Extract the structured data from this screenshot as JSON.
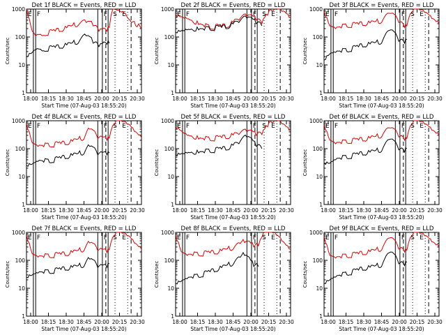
{
  "figure": {
    "ylabel": "Counts/sec",
    "xlabel": "Start Time (07-Aug-03 18:55:20)"
  },
  "chart_data": [
    {
      "type": "line",
      "title": "Det 1f BLACK = Events, RED = LLD",
      "xlabel": "Start Time (07-Aug-03 18:55:20)",
      "ylabel": "Counts/sec",
      "xticks": [
        "18:00",
        "18:15",
        "18:30",
        "18:45",
        "20:00",
        "20:15",
        "20:30"
      ],
      "yticks": [
        "1",
        "10",
        "100",
        "1000"
      ],
      "ylim": [
        1,
        1000
      ],
      "yscale": "log",
      "markers": [
        "F",
        "S",
        "E"
      ],
      "series": [
        {
          "name": "LLD",
          "color": "#e00000",
          "x": [
            0,
            0.05,
            0.08,
            0.15,
            0.3,
            0.45,
            0.52,
            0.58,
            0.63,
            0.7,
            0.72,
            0.75,
            0.78,
            0.8,
            0.85,
            0.9,
            0.95,
            1.0
          ],
          "values": [
            1000,
            160,
            110,
            115,
            160,
            260,
            330,
            250,
            160,
            160,
            220,
            1000,
            950,
            900,
            700,
            400,
            250,
            200
          ]
        },
        {
          "name": "Events",
          "color": "#000000",
          "x": [
            0,
            0.05,
            0.08,
            0.15,
            0.3,
            0.45,
            0.52,
            0.58,
            0.63,
            0.7,
            0.72
          ],
          "values": [
            20,
            28,
            35,
            32,
            40,
            60,
            110,
            60,
            45,
            55,
            60
          ]
        }
      ]
    },
    {
      "type": "line",
      "title": "Det 2f BLACK = Events, RED = LLD",
      "xlabel": "Start Time (07-Aug-03 18:55:20)",
      "ylabel": "Counts/sec",
      "xticks": [
        "18:00",
        "18:15",
        "18:30",
        "18:45",
        "20:00",
        "20:15",
        "20:30"
      ],
      "yticks": [
        "1",
        "10",
        "100",
        "1000"
      ],
      "ylim": [
        1,
        1000
      ],
      "yscale": "log",
      "markers": [
        "F",
        "S",
        "E"
      ],
      "series": [
        {
          "name": "LLD",
          "color": "#e00000",
          "x": [
            0,
            0.1,
            0.2,
            0.3,
            0.45,
            0.55,
            0.62,
            0.7,
            0.75,
            0.8,
            0.85,
            0.9,
            0.95,
            1.0
          ],
          "values": [
            600,
            450,
            280,
            200,
            220,
            400,
            550,
            400,
            300,
            600,
            900,
            1000,
            800,
            500
          ]
        },
        {
          "name": "Events",
          "color": "#000000",
          "x": [
            0,
            0.1,
            0.2,
            0.3,
            0.45,
            0.55,
            0.62,
            0.7,
            0.75
          ],
          "values": [
            150,
            180,
            180,
            180,
            200,
            330,
            470,
            300,
            250
          ]
        }
      ]
    },
    {
      "type": "line",
      "title": "Det 3f BLACK = Events, RED = LLD",
      "xlabel": "Start Time (07-Aug-03 18:55:20)",
      "ylabel": "Counts/sec",
      "xticks": [
        "18:00",
        "18:15",
        "18:30",
        "18:45",
        "20:00",
        "20:15",
        "20:30"
      ],
      "yticks": [
        "1",
        "10",
        "100",
        "1000"
      ],
      "ylim": [
        1,
        1000
      ],
      "yscale": "log",
      "markers": [
        "F",
        "S",
        "E"
      ],
      "series": [
        {
          "name": "LLD",
          "color": "#e00000",
          "x": [
            0,
            0.05,
            0.1,
            0.2,
            0.35,
            0.5,
            0.58,
            0.65,
            0.7,
            0.72,
            0.78,
            0.85,
            0.9,
            0.95,
            1.0
          ],
          "values": [
            800,
            250,
            200,
            230,
            260,
            330,
            700,
            330,
            220,
            250,
            1000,
            950,
            700,
            450,
            300
          ]
        },
        {
          "name": "Events",
          "color": "#000000",
          "x": [
            0,
            0.05,
            0.1,
            0.2,
            0.35,
            0.5,
            0.58,
            0.65,
            0.7,
            0.72
          ],
          "values": [
            15,
            25,
            28,
            30,
            45,
            60,
            180,
            70,
            60,
            80
          ]
        }
      ]
    },
    {
      "type": "line",
      "title": "Det 4f BLACK = Events, RED = LLD",
      "xlabel": "Start Time (07-Aug-03 18:55:20)",
      "ylabel": "Counts/sec",
      "xticks": [
        "18:00",
        "18:15",
        "18:30",
        "18:45",
        "20:00",
        "20:15",
        "20:30"
      ],
      "yticks": [
        "1",
        "10",
        "100",
        "1000"
      ],
      "ylim": [
        1,
        1000
      ],
      "yscale": "log",
      "markers": [
        "F",
        "S",
        "E"
      ],
      "series": [
        {
          "name": "LLD",
          "color": "#e00000",
          "x": [
            0,
            0.05,
            0.1,
            0.2,
            0.35,
            0.5,
            0.55,
            0.62,
            0.7,
            0.72,
            0.78,
            0.85,
            0.9,
            0.95,
            1.0
          ],
          "values": [
            800,
            160,
            120,
            120,
            140,
            220,
            500,
            230,
            200,
            240,
            1000,
            950,
            700,
            400,
            250
          ]
        },
        {
          "name": "Events",
          "color": "#000000",
          "x": [
            0,
            0.05,
            0.1,
            0.2,
            0.35,
            0.5,
            0.55,
            0.62,
            0.7,
            0.72
          ],
          "values": [
            25,
            28,
            35,
            32,
            45,
            65,
            120,
            60,
            60,
            70
          ]
        }
      ]
    },
    {
      "type": "line",
      "title": "Det 5f BLACK = Events, RED = LLD",
      "xlabel": "Start Time (07-Aug-03 18:55:20)",
      "ylabel": "Counts/sec",
      "xticks": [
        "18:00",
        "18:15",
        "18:30",
        "18:45",
        "20:00",
        "20:15",
        "20:30"
      ],
      "yticks": [
        "1",
        "10",
        "100",
        "1000"
      ],
      "ylim": [
        1,
        1000
      ],
      "yscale": "log",
      "markers": [
        "F",
        "S",
        "E"
      ],
      "series": [
        {
          "name": "LLD",
          "color": "#e00000",
          "x": [
            0,
            0.1,
            0.2,
            0.3,
            0.45,
            0.55,
            0.62,
            0.7,
            0.75,
            0.8,
            0.85,
            0.9,
            0.95,
            1.0
          ],
          "values": [
            600,
            300,
            220,
            200,
            230,
            320,
            400,
            300,
            320,
            600,
            900,
            1000,
            700,
            450
          ]
        },
        {
          "name": "Events",
          "color": "#000000",
          "x": [
            0,
            0.1,
            0.2,
            0.3,
            0.45,
            0.55,
            0.62,
            0.7,
            0.75
          ],
          "values": [
            60,
            70,
            70,
            75,
            90,
            150,
            260,
            120,
            100
          ]
        }
      ]
    },
    {
      "type": "line",
      "title": "Det 6f BLACK = Events, RED = LLD",
      "xlabel": "Start Time (07-Aug-03 18:55:20)",
      "ylabel": "Counts/sec",
      "xticks": [
        "18:00",
        "18:15",
        "18:30",
        "18:45",
        "20:00",
        "20:15",
        "20:30"
      ],
      "yticks": [
        "1",
        "10",
        "100",
        "1000"
      ],
      "ylim": [
        1,
        1000
      ],
      "yscale": "log",
      "markers": [
        "F",
        "S",
        "E"
      ],
      "series": [
        {
          "name": "LLD",
          "color": "#e00000",
          "x": [
            0,
            0.05,
            0.1,
            0.2,
            0.35,
            0.5,
            0.58,
            0.65,
            0.7,
            0.72,
            0.78,
            0.85,
            0.9,
            0.95,
            1.0
          ],
          "values": [
            700,
            200,
            150,
            160,
            190,
            260,
            550,
            260,
            200,
            230,
            1000,
            950,
            700,
            450,
            300
          ]
        },
        {
          "name": "Events",
          "color": "#000000",
          "x": [
            0,
            0.05,
            0.1,
            0.2,
            0.35,
            0.5,
            0.58,
            0.65,
            0.7,
            0.72
          ],
          "values": [
            30,
            30,
            40,
            45,
            60,
            80,
            220,
            90,
            75,
            100
          ]
        }
      ]
    },
    {
      "type": "line",
      "title": "Det 7f BLACK = Events, RED = LLD",
      "xlabel": "Start Time (07-Aug-03 18:55:20)",
      "ylabel": "Counts/sec",
      "xticks": [
        "18:00",
        "18:15",
        "18:30",
        "18:45",
        "20:00",
        "20:15",
        "20:30"
      ],
      "yticks": [
        "1",
        "10",
        "100",
        "1000"
      ],
      "ylim": [
        1,
        1000
      ],
      "yscale": "log",
      "markers": [
        "F",
        "S",
        "E"
      ],
      "series": [
        {
          "name": "LLD",
          "color": "#e00000",
          "x": [
            0,
            0.05,
            0.1,
            0.2,
            0.35,
            0.5,
            0.55,
            0.62,
            0.7,
            0.72,
            0.78,
            0.85,
            0.9,
            0.95,
            1.0
          ],
          "values": [
            800,
            170,
            130,
            130,
            150,
            220,
            420,
            220,
            190,
            240,
            1000,
            950,
            700,
            400,
            250
          ]
        },
        {
          "name": "Events",
          "color": "#000000",
          "x": [
            0,
            0.05,
            0.1,
            0.2,
            0.35,
            0.5,
            0.55,
            0.62,
            0.7,
            0.72
          ],
          "values": [
            25,
            30,
            35,
            35,
            45,
            60,
            110,
            55,
            55,
            75
          ]
        }
      ]
    },
    {
      "type": "line",
      "title": "Det 8f BLACK = Events, RED = LLD",
      "xlabel": "Start Time (07-Aug-03 18:55:20)",
      "ylabel": "Counts/sec",
      "xticks": [
        "18:00",
        "18:15",
        "18:30",
        "18:45",
        "20:00",
        "20:15",
        "20:30"
      ],
      "yticks": [
        "1",
        "10",
        "100",
        "1000"
      ],
      "ylim": [
        1,
        1000
      ],
      "yscale": "log",
      "markers": [
        "F",
        "S",
        "E"
      ],
      "series": [
        {
          "name": "LLD",
          "color": "#e00000",
          "x": [
            0,
            0.05,
            0.1,
            0.2,
            0.35,
            0.5,
            0.6,
            0.68,
            0.72,
            0.78,
            0.85,
            0.9,
            0.95,
            1.0
          ],
          "values": [
            800,
            200,
            150,
            150,
            170,
            250,
            430,
            300,
            330,
            1000,
            950,
            700,
            400,
            250
          ]
        },
        {
          "name": "Events",
          "color": "#000000",
          "x": [
            0,
            0.05,
            0.1,
            0.2,
            0.35,
            0.5,
            0.6,
            0.68,
            0.72
          ],
          "values": [
            15,
            18,
            22,
            25,
            40,
            70,
            150,
            60,
            60
          ]
        }
      ]
    },
    {
      "type": "line",
      "title": "Det 9f BLACK = Events, RED = LLD",
      "xlabel": "Start Time (07-Aug-03 18:55:20)",
      "ylabel": "Counts/sec",
      "xticks": [
        "18:00",
        "18:15",
        "18:30",
        "18:45",
        "20:00",
        "20:15",
        "20:30"
      ],
      "yticks": [
        "1",
        "10",
        "100",
        "1000"
      ],
      "ylim": [
        1,
        1000
      ],
      "yscale": "log",
      "markers": [
        "F",
        "S",
        "E"
      ],
      "series": [
        {
          "name": "LLD",
          "color": "#e00000",
          "x": [
            0,
            0.05,
            0.1,
            0.2,
            0.35,
            0.5,
            0.58,
            0.65,
            0.7,
            0.72,
            0.78,
            0.85,
            0.9,
            0.95,
            1.0
          ],
          "values": [
            700,
            150,
            120,
            130,
            160,
            230,
            650,
            250,
            200,
            230,
            1000,
            950,
            700,
            450,
            300
          ]
        },
        {
          "name": "Events",
          "color": "#000000",
          "x": [
            0,
            0.05,
            0.1,
            0.2,
            0.35,
            0.5,
            0.58,
            0.65,
            0.7,
            0.72
          ],
          "values": [
            15,
            20,
            25,
            30,
            45,
            60,
            200,
            75,
            65,
            85
          ]
        }
      ]
    }
  ]
}
